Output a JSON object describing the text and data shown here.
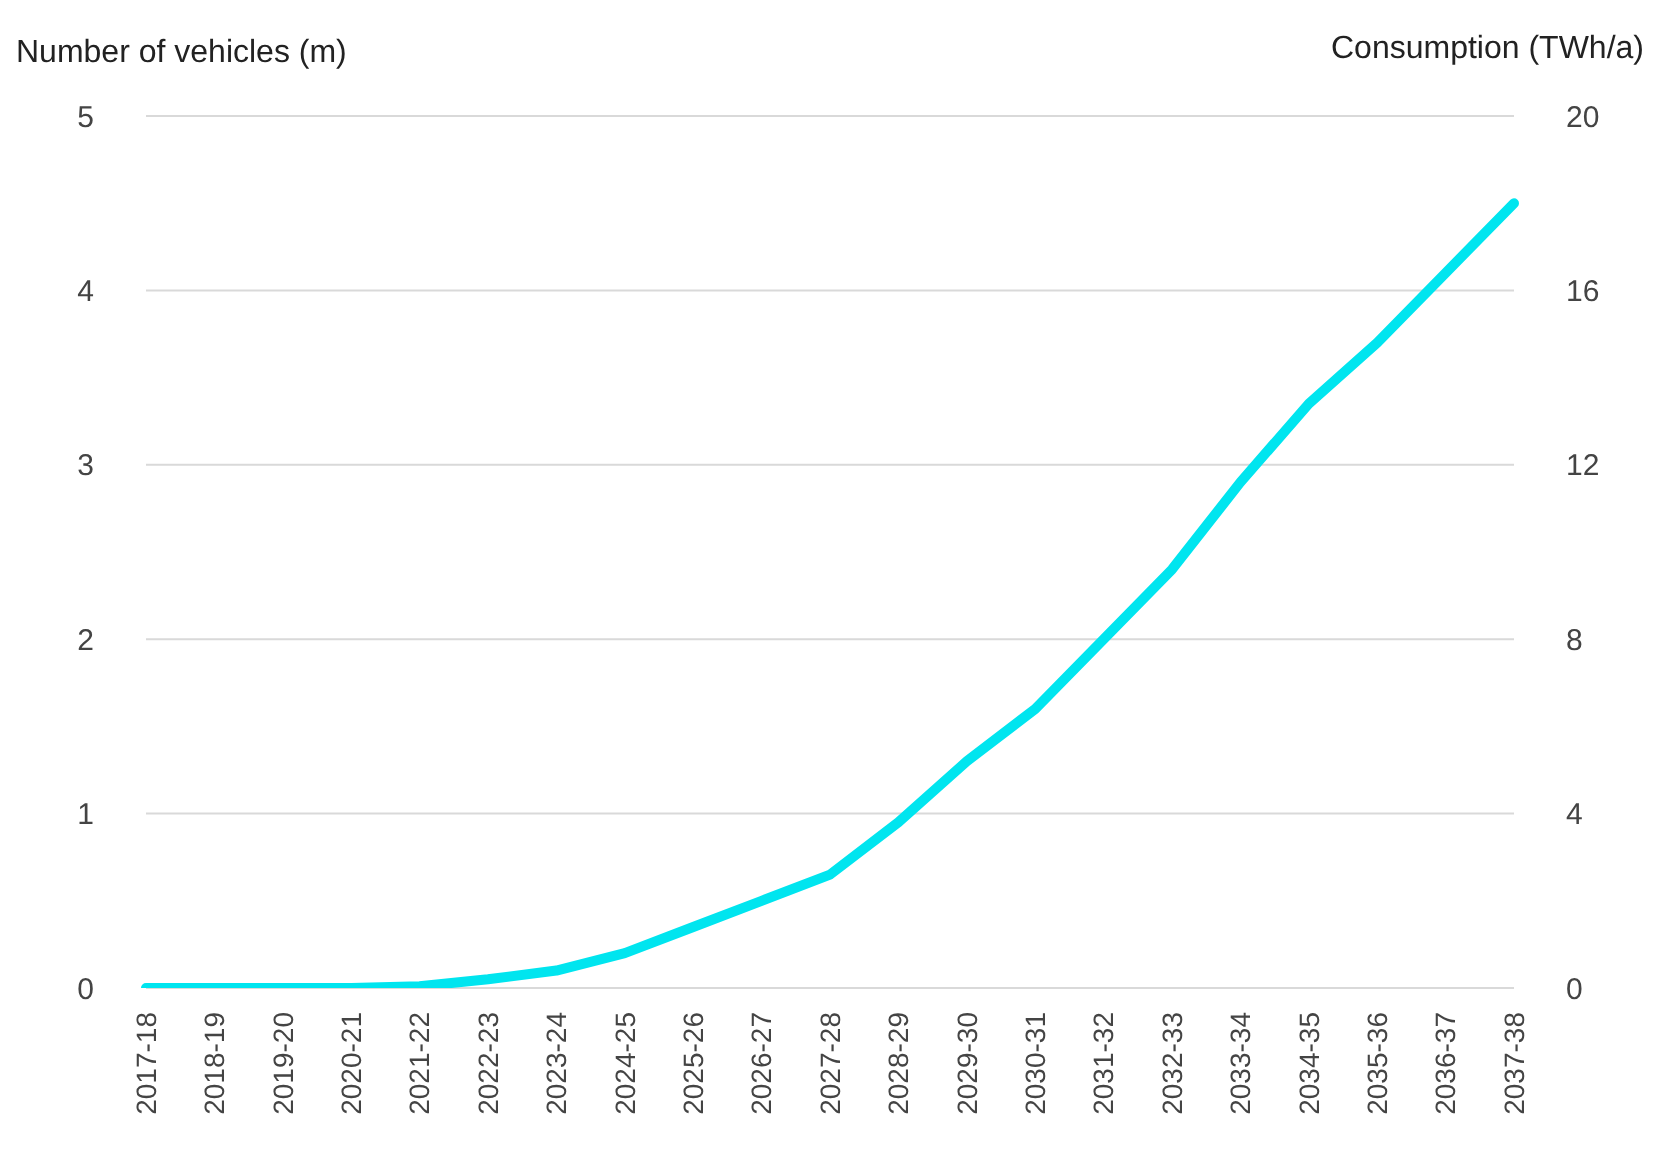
{
  "chart_data": {
    "type": "line",
    "ylabel": "Number of vehicles (m)",
    "y2label": "Consumption (TWh/a)",
    "categories": [
      "2017-18",
      "2018-19",
      "2019-20",
      "2020-21",
      "2021-22",
      "2022-23",
      "2023-24",
      "2024-25",
      "2025-26",
      "2026-27",
      "2027-28",
      "2028-29",
      "2029-30",
      "2030-31",
      "2031-32",
      "2032-33",
      "2033-34",
      "2034-35",
      "2035-36",
      "2036-37",
      "2037-38"
    ],
    "series": [
      {
        "color": "#00e5ef",
        "values": [
          0,
          0,
          0,
          0,
          0.01,
          0.05,
          0.1,
          0.2,
          0.35,
          0.5,
          0.65,
          0.95,
          1.3,
          1.6,
          2.0,
          2.4,
          2.9,
          3.35,
          3.7,
          4.1,
          4.5
        ]
      }
    ],
    "ylim": [
      0,
      5
    ],
    "yticks": [
      0,
      1,
      2,
      3,
      4,
      5
    ],
    "y2lim": [
      0,
      20
    ],
    "y2ticks": [
      0,
      4,
      8,
      12,
      16,
      20
    ],
    "grid": "y",
    "legend": false,
    "marker": "none",
    "line_style": "solid"
  }
}
